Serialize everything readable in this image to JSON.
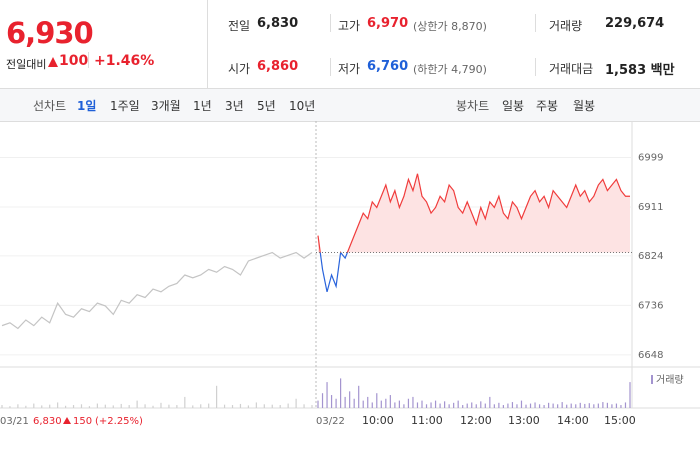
{
  "header": {
    "price": "6,930",
    "change_label": "전일대비",
    "change": "100",
    "change_pct": "+1.46%"
  },
  "stats": [
    {
      "label": "전일",
      "value": "6,830"
    },
    {
      "label": "고가",
      "value": "6,970",
      "note": "(상한가 8,870)"
    },
    {
      "label": "거래량",
      "value": "229,674"
    },
    {
      "label": "시가",
      "value": "6,860"
    },
    {
      "label": "저가",
      "value": "6,760",
      "note": "(하한가 4,790)"
    },
    {
      "label": "거래대금",
      "value": "1,583 백만"
    }
  ],
  "tabs": {
    "line_label": "선차트",
    "line": [
      "1일",
      "1주일",
      "3개월",
      "1년",
      "3년",
      "5년",
      "10년"
    ],
    "candle_label": "봉차트",
    "candle": [
      "일봉",
      "주봉",
      "월봉"
    ]
  },
  "chart_data": {
    "type": "line",
    "ylim": [
      6630,
      7030
    ],
    "yticks": [
      6648,
      6736,
      6824,
      6911,
      6999
    ],
    "reference": 6830,
    "series": [
      {
        "color": "#c4c4c4",
        "values": [
          6700,
          6705,
          6695,
          6710,
          6700,
          6715,
          6705,
          6740,
          6720,
          6715,
          6730,
          6725,
          6740,
          6735,
          6720,
          6745,
          6740,
          6755,
          6750,
          6765,
          6760,
          6770,
          6775,
          6790,
          6785,
          6790,
          6800,
          6795,
          6805,
          6800,
          6790,
          6815,
          6820,
          6825,
          6830,
          6820,
          6825,
          6830,
          6820,
          6830
        ]
      },
      {
        "color": "#f03c3c",
        "below_color": "#2a64dc",
        "fill": "#fde3e3",
        "values": [
          6860,
          6800,
          6760,
          6790,
          6770,
          6830,
          6820,
          6840,
          6860,
          6880,
          6900,
          6890,
          6920,
          6910,
          6930,
          6950,
          6920,
          6940,
          6910,
          6930,
          6960,
          6940,
          6970,
          6930,
          6920,
          6900,
          6910,
          6930,
          6920,
          6950,
          6940,
          6910,
          6900,
          6920,
          6900,
          6880,
          6910,
          6890,
          6920,
          6910,
          6930,
          6900,
          6890,
          6920,
          6910,
          6890,
          6910,
          6930,
          6940,
          6920,
          6930,
          6910,
          6940,
          6930,
          6920,
          6910,
          6930,
          6950,
          6930,
          6940,
          6920,
          6930,
          6950,
          6960,
          6940,
          6950,
          6960,
          6940,
          6930,
          6930
        ]
      }
    ],
    "volume": {
      "legend": "거래량",
      "color": "#a394cf",
      "prev_color": "#d0d0d0",
      "ylim": [
        0,
        100
      ],
      "series": [
        [
          8,
          5,
          10,
          6,
          12,
          7,
          9,
          15,
          6,
          8,
          10,
          5,
          12,
          9,
          7,
          11,
          8,
          20,
          10,
          6,
          14,
          9,
          8,
          30,
          7,
          10,
          12,
          60,
          9,
          8,
          11,
          7,
          15,
          10,
          9,
          8,
          12,
          25,
          10,
          8
        ],
        [
          20,
          40,
          70,
          35,
          25,
          80,
          30,
          45,
          25,
          60,
          20,
          30,
          15,
          40,
          20,
          25,
          35,
          15,
          20,
          10,
          25,
          30,
          15,
          20,
          10,
          15,
          20,
          12,
          18,
          10,
          14,
          20,
          8,
          12,
          15,
          10,
          18,
          12,
          30,
          10,
          14,
          8,
          12,
          16,
          10,
          20,
          9,
          12,
          15,
          10,
          8,
          14,
          12,
          10,
          16,
          9,
          12,
          10,
          14,
          11,
          13,
          10,
          12,
          16,
          14,
          10,
          12,
          8,
          15,
          70
        ]
      ]
    },
    "x_labels": [
      "03/21",
      "03/22",
      "10:00",
      "11:00",
      "12:00",
      "13:00",
      "14:00",
      "15:00"
    ],
    "prev_day": {
      "close": "6,830",
      "change": "150",
      "change_pct": "(+2.25%)"
    }
  }
}
